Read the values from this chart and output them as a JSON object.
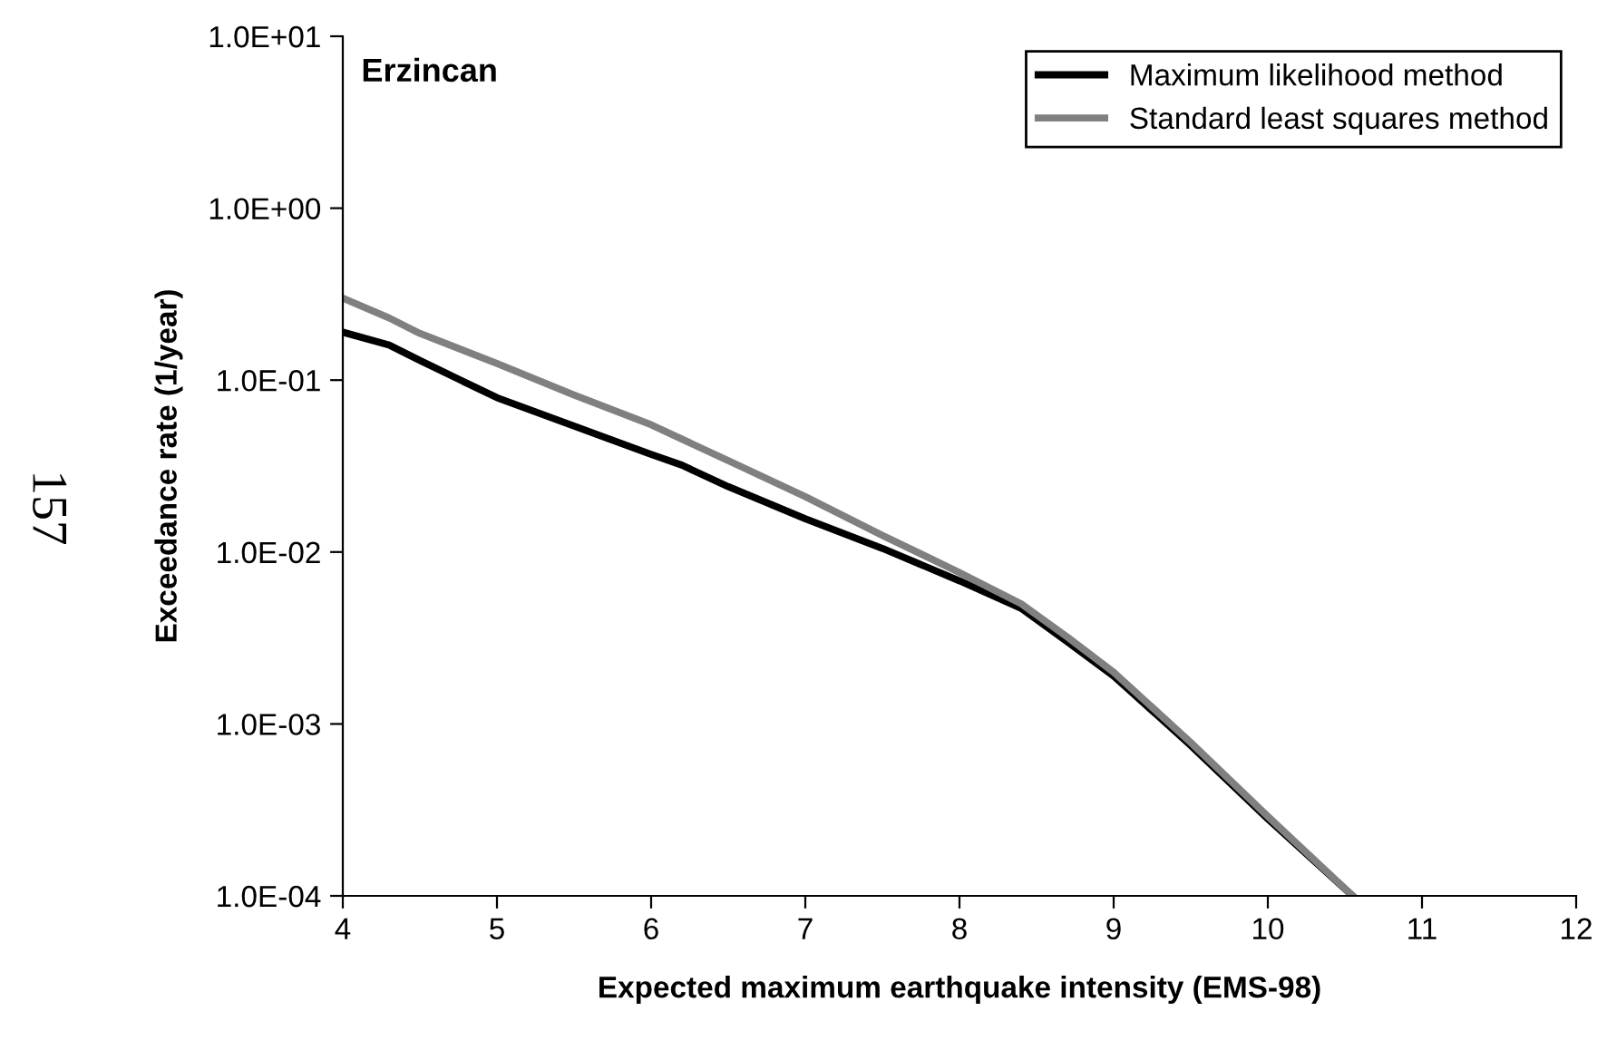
{
  "chart_data": {
    "type": "line",
    "xlabel": "Expected maximum earthquake intensity (EMS-98)",
    "ylabel": "Exceedance rate (1/year)",
    "annotations": [
      "Erzincan",
      "157"
    ],
    "log": "y",
    "xlim": [
      4,
      12
    ],
    "xticks": [
      4,
      5,
      6,
      7,
      8,
      9,
      10,
      11,
      12
    ],
    "ylim": [
      0.0001,
      10
    ],
    "yticks": [
      {
        "value": 0.0001,
        "label": "1.0E-04"
      },
      {
        "value": 0.001,
        "label": "1.0E-03"
      },
      {
        "value": 0.01,
        "label": "1.0E-02"
      },
      {
        "value": 0.1,
        "label": "1.0E-01"
      },
      {
        "value": 1,
        "label": "1.0E+00"
      },
      {
        "value": 10,
        "label": "1.0E+01"
      }
    ],
    "grid": false,
    "legend": "top right",
    "line_style": "solid",
    "marker": "none",
    "series": [
      {
        "name": "Maximum likelihood method",
        "color": "#000000",
        "x": [
          4,
          4.3,
          4.5,
          5,
          5.5,
          6,
          6.2,
          6.5,
          7,
          7.5,
          8,
          8.4,
          8.7,
          9,
          9.5,
          10,
          10.55
        ],
        "values": [
          0.19,
          0.16,
          0.13,
          0.079,
          0.054,
          0.037,
          0.032,
          0.024,
          0.0156,
          0.0105,
          0.0068,
          0.0047,
          0.003,
          0.0019,
          0.00075,
          0.00028,
          0.0001
        ]
      },
      {
        "name": "Standard least squares method",
        "color": "#808080",
        "x": [
          4,
          4.3,
          4.5,
          5,
          5.5,
          6,
          6.5,
          7,
          7.5,
          8,
          8.4,
          8.7,
          9,
          9.5,
          10,
          10.55
        ],
        "values": [
          0.3,
          0.23,
          0.187,
          0.125,
          0.082,
          0.055,
          0.034,
          0.021,
          0.0125,
          0.0076,
          0.005,
          0.0032,
          0.002,
          0.00078,
          0.00029,
          0.0001
        ]
      }
    ]
  }
}
